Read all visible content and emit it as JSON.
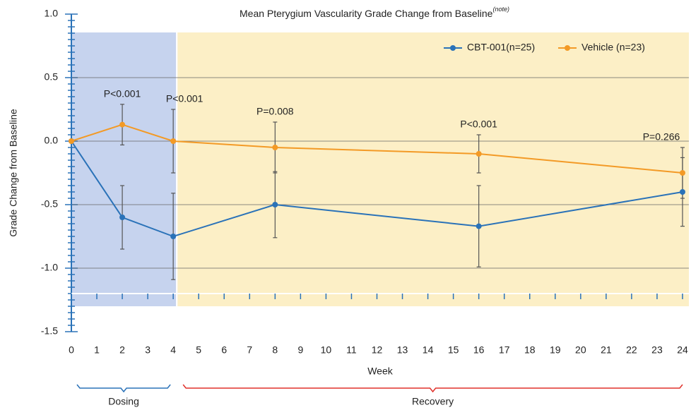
{
  "chart_data": {
    "type": "line",
    "title": "Mean Pterygium Vascularity Grade Change from Baseline",
    "title_note": "(note)",
    "x_label": "Week",
    "y_label": "Grade Change from Baseline",
    "x": [
      0,
      2,
      4,
      8,
      16,
      24
    ],
    "series": [
      {
        "name": "CBT-001(n=25)",
        "color": "#2a72b8",
        "values": [
          0,
          -0.6,
          -0.75,
          -0.5,
          -0.67,
          -0.4
        ],
        "errors": [
          null,
          0.25,
          0.34,
          0.26,
          0.32,
          0.27
        ]
      },
      {
        "name": "Vehicle (n=23)",
        "color": "#f39a26",
        "values": [
          0,
          0.13,
          0,
          -0.05,
          -0.1,
          -0.25
        ],
        "errors": [
          null,
          0.16,
          0.25,
          0.2,
          0.15,
          0.2
        ]
      }
    ],
    "annotations": [
      {
        "text": "P<0.001",
        "x": 2
      },
      {
        "text": "P<0.001",
        "x": 4
      },
      {
        "text": "P=0.008",
        "x": 8
      },
      {
        "text": "P<0.001",
        "x": 16
      },
      {
        "text": "P=0.266",
        "x": 24
      }
    ],
    "regions": [
      {
        "label": "Dosing",
        "start": 0,
        "end": 4,
        "color": "#c6d3ee",
        "bracket_color": "#2a72b8"
      },
      {
        "label": "Recovery",
        "start": 4,
        "end": 24,
        "color": "#fcefc6",
        "bracket_color": "#e0312b"
      }
    ],
    "xlim": [
      0,
      24
    ],
    "xticks": [
      0,
      1,
      2,
      3,
      4,
      5,
      6,
      7,
      8,
      9,
      10,
      11,
      12,
      13,
      14,
      15,
      16,
      17,
      18,
      19,
      20,
      21,
      22,
      23,
      24
    ],
    "ylim": [
      -1.5,
      1.0
    ],
    "yticks": [
      {
        "value": 1.0,
        "label": "1.0"
      },
      0.5,
      {
        "value": 0.0,
        "label": "0.0"
      },
      -0.5,
      {
        "value": -1.0,
        "label": "-1.0"
      },
      -1.5
    ],
    "grid": true,
    "legend": "top-right"
  }
}
